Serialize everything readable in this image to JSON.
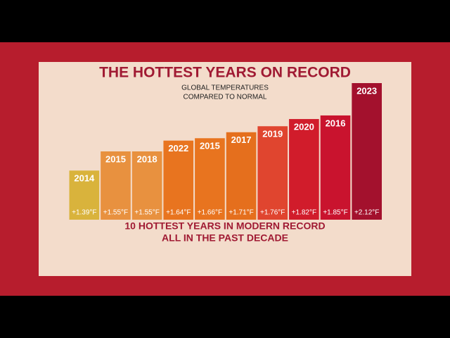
{
  "chart_data": {
    "type": "bar",
    "title": "THE HOTTEST YEARS ON RECORD",
    "subtitle": [
      "GLOBAL TEMPERATURES",
      "COMPARED TO NORMAL"
    ],
    "categories": [
      "2014",
      "2015",
      "2018",
      "2022",
      "2015",
      "2017",
      "2019",
      "2020",
      "2016",
      "2023"
    ],
    "values": [
      1.39,
      1.55,
      1.55,
      1.64,
      1.66,
      1.71,
      1.76,
      1.82,
      1.85,
      2.12
    ],
    "value_labels": [
      "+1.39°F",
      "+1.55°F",
      "+1.55°F",
      "+1.64°F",
      "+1.66°F",
      "+1.71°F",
      "+1.76°F",
      "+1.82°F",
      "+1.85°F",
      "+2.12°F"
    ],
    "colors": [
      "#d9b33c",
      "#e8913f",
      "#e8913f",
      "#e8741f",
      "#e8741f",
      "#e56f1d",
      "#e0452f",
      "#d11c2b",
      "#c9132e",
      "#a3112d"
    ],
    "ylim": [
      0.98,
      2.12
    ],
    "annotations": [
      "10 HOTTEST YEARS IN MODERN RECORD",
      "ALL IN THE PAST DECADE"
    ]
  }
}
